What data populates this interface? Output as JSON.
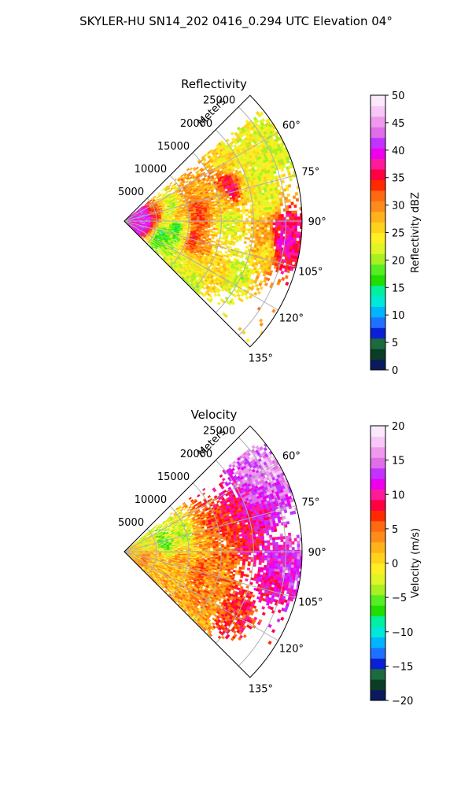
{
  "figure": {
    "suptitle": "SKYLER-HU  SN14_202  0416_0.294 UTC Elevation 04°"
  },
  "chart_data": [
    {
      "type": "heatmap",
      "title": "Reflectivity",
      "radial_label": "Meters",
      "radial_ticks": [
        "5000",
        "10000",
        "15000",
        "20000",
        "25000"
      ],
      "radial_tick_values": [
        5000,
        10000,
        15000,
        20000,
        25000
      ],
      "radial_max": 27500,
      "angle_ticks": [
        "60°",
        "75°",
        "90°",
        "105°",
        "120°",
        "135°"
      ],
      "angle_tick_values": [
        60,
        75,
        90,
        105,
        120,
        135
      ],
      "angle_range_deg": [
        45,
        135
      ],
      "grid": true,
      "colorbar": {
        "label": "Reflectivity dBZ",
        "range": [
          0,
          50
        ],
        "ticks": [
          "0",
          "5",
          "10",
          "15",
          "20",
          "25",
          "30",
          "35",
          "40",
          "45",
          "50"
        ],
        "tick_values": [
          0,
          5,
          10,
          15,
          20,
          25,
          30,
          35,
          40,
          45,
          50
        ],
        "colors": [
          "#0a1a5c",
          "#0b3d26",
          "#1b6b3d",
          "#0b1fd6",
          "#1e72ff",
          "#00b4ff",
          "#00e8d8",
          "#00f0a0",
          "#22dd00",
          "#55ee22",
          "#a8f020",
          "#dff525",
          "#ffee22",
          "#ffd21c",
          "#ffb21a",
          "#ff8c1a",
          "#ff6a10",
          "#ff2a00",
          "#ff0040",
          "#ff1a9a",
          "#ee00ee",
          "#c233ff",
          "#e06ee8",
          "#ee99ee",
          "#f7c8f7",
          "#fce8fb"
        ]
      },
      "cells": [
        {
          "az": 60,
          "r": 24000,
          "value": 23
        },
        {
          "az": 63,
          "r": 21500,
          "value": 24
        },
        {
          "az": 66,
          "r": 25000,
          "value": 22
        },
        {
          "az": 60,
          "r": 18000,
          "value": 25
        },
        {
          "az": 72,
          "r": 17000,
          "value": 36
        },
        {
          "az": 70,
          "r": 12000,
          "value": 28
        },
        {
          "az": 78,
          "r": 11500,
          "value": 33
        },
        {
          "az": 80,
          "r": 15000,
          "value": 27
        },
        {
          "az": 75,
          "r": 20000,
          "value": 24
        },
        {
          "az": 84,
          "r": 8000,
          "value": 30
        },
        {
          "az": 86,
          "r": 3000,
          "value": 42
        },
        {
          "az": 88,
          "r": 1500,
          "value": 40
        },
        {
          "az": 82,
          "r": 5000,
          "value": 34
        },
        {
          "az": 88,
          "r": 11000,
          "value": 32
        },
        {
          "az": 90,
          "r": 16000,
          "value": 22
        },
        {
          "az": 93,
          "r": 24000,
          "value": 36
        },
        {
          "az": 97,
          "r": 24500,
          "value": 39
        },
        {
          "az": 100,
          "r": 25000,
          "value": 37
        },
        {
          "az": 95,
          "r": 22000,
          "value": 28
        },
        {
          "az": 102,
          "r": 22500,
          "value": 25
        },
        {
          "az": 96,
          "r": 8000,
          "value": 14
        },
        {
          "az": 100,
          "r": 9500,
          "value": 24
        },
        {
          "az": 104,
          "r": 10500,
          "value": 35
        },
        {
          "az": 110,
          "r": 12000,
          "value": 30
        },
        {
          "az": 112,
          "r": 8000,
          "value": 20
        },
        {
          "az": 108,
          "r": 6000,
          "value": 16
        },
        {
          "az": 118,
          "r": 16000,
          "value": 26
        },
        {
          "az": 124,
          "r": 13000,
          "value": 24
        },
        {
          "az": 128,
          "r": 10500,
          "value": 22
        },
        {
          "az": 132,
          "r": 13500,
          "value": 21
        },
        {
          "az": 115,
          "r": 19000,
          "value": 22
        },
        {
          "az": 92,
          "r": 6000,
          "value": 23
        },
        {
          "az": 76,
          "r": 7500,
          "value": 20
        },
        {
          "az": 68,
          "r": 22000,
          "value": 22
        },
        {
          "az": 82,
          "r": 22000,
          "value": 22
        }
      ]
    },
    {
      "type": "heatmap",
      "title": "Velocity",
      "radial_label": "Meters",
      "radial_ticks": [
        "5000",
        "10000",
        "15000",
        "20000",
        "25000"
      ],
      "radial_tick_values": [
        5000,
        10000,
        15000,
        20000,
        25000
      ],
      "radial_max": 27500,
      "angle_ticks": [
        "60°",
        "75°",
        "90°",
        "105°",
        "120°",
        "135°"
      ],
      "angle_tick_values": [
        60,
        75,
        90,
        105,
        120,
        135
      ],
      "angle_range_deg": [
        45,
        135
      ],
      "grid": true,
      "colorbar": {
        "label": "Velocity (m/s)",
        "range": [
          -20,
          20
        ],
        "ticks": [
          "−20",
          "−15",
          "−10",
          "−5",
          "0",
          "5",
          "10",
          "15",
          "20"
        ],
        "tick_values": [
          -20,
          -15,
          -10,
          -5,
          0,
          5,
          10,
          15,
          20
        ],
        "colors": [
          "#0a1a5c",
          "#0b3d26",
          "#1b6b3d",
          "#0b1fd6",
          "#1e72ff",
          "#00b4ff",
          "#00e8d8",
          "#00f0a0",
          "#22dd00",
          "#55ee22",
          "#a8f020",
          "#dff525",
          "#ffee22",
          "#ffd21c",
          "#ffb21a",
          "#ff8c1a",
          "#ff6a10",
          "#ff2a00",
          "#ff0040",
          "#ff1a9a",
          "#ee00ee",
          "#c233ff",
          "#e06ee8",
          "#ee99ee",
          "#f7c8f7",
          "#fce8fb"
        ]
      },
      "cells": [
        {
          "az": 58,
          "r": 23000,
          "value": 15
        },
        {
          "az": 62,
          "r": 25000,
          "value": 16
        },
        {
          "az": 66,
          "r": 21500,
          "value": 13
        },
        {
          "az": 70,
          "r": 18000,
          "value": 9
        },
        {
          "az": 72,
          "r": 14000,
          "value": 6
        },
        {
          "az": 76,
          "r": 9500,
          "value": -3
        },
        {
          "az": 82,
          "r": 6000,
          "value": -6
        },
        {
          "az": 86,
          "r": 3000,
          "value": -10
        },
        {
          "az": 80,
          "r": 12000,
          "value": 3
        },
        {
          "az": 78,
          "r": 17000,
          "value": 7
        },
        {
          "az": 84,
          "r": 19000,
          "value": 9
        },
        {
          "az": 90,
          "r": 10000,
          "value": 1
        },
        {
          "az": 93,
          "r": 24000,
          "value": 12
        },
        {
          "az": 97,
          "r": 25000,
          "value": 14
        },
        {
          "az": 101,
          "r": 24000,
          "value": 10
        },
        {
          "az": 96,
          "r": 15000,
          "value": 4
        },
        {
          "az": 100,
          "r": 9000,
          "value": 3
        },
        {
          "az": 105,
          "r": 12000,
          "value": 5
        },
        {
          "az": 110,
          "r": 15000,
          "value": 4
        },
        {
          "az": 114,
          "r": 9000,
          "value": 2
        },
        {
          "az": 118,
          "r": 19000,
          "value": 7
        },
        {
          "az": 122,
          "r": 14000,
          "value": 4
        },
        {
          "az": 128,
          "r": 12000,
          "value": 3
        },
        {
          "az": 132,
          "r": 14500,
          "value": 2
        },
        {
          "az": 92,
          "r": 3000,
          "value": 12
        },
        {
          "az": 94,
          "r": 5500,
          "value": 2
        },
        {
          "az": 108,
          "r": 5500,
          "value": 2
        },
        {
          "az": 68,
          "r": 25000,
          "value": 14
        },
        {
          "az": 74,
          "r": 21500,
          "value": 11
        }
      ]
    }
  ]
}
